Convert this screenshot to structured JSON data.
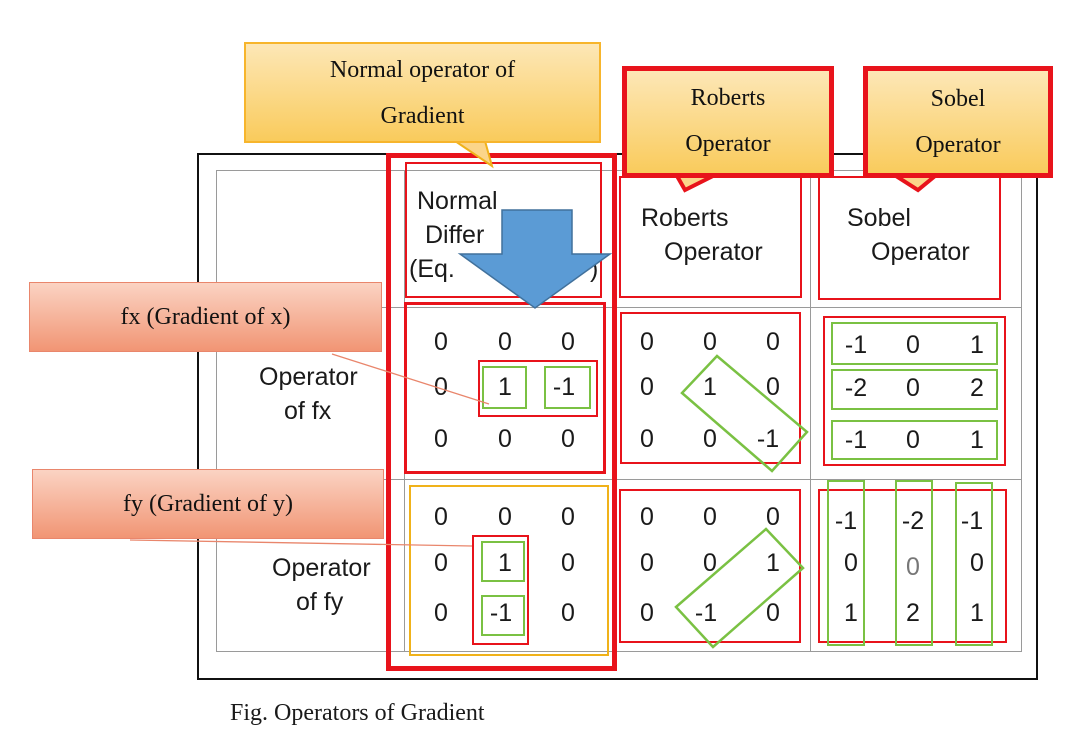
{
  "callouts": {
    "normal": [
      "Normal operator of",
      "Gradient"
    ],
    "roberts": [
      "Roberts",
      "Operator"
    ],
    "sobel": [
      "Sobel",
      "Operator"
    ]
  },
  "headers": {
    "normal": [
      "Normal",
      "Differ",
      "(Eq.",
      ")"
    ],
    "roberts": [
      "Roberts",
      "Operator"
    ],
    "sobel": [
      "Sobel",
      "Operator"
    ]
  },
  "row_labels": {
    "fx": [
      "Operator",
      "of fx"
    ],
    "fy": [
      "Operator",
      "of fy"
    ]
  },
  "side_labels": {
    "fx": "fx (Gradient of x)",
    "fy": "fy (Gradient of y)"
  },
  "matrices": {
    "normal_fx": [
      [
        "0",
        "0",
        "0"
      ],
      [
        "0",
        "1",
        "-1"
      ],
      [
        "0",
        "0",
        "0"
      ]
    ],
    "roberts_fx": [
      [
        "0",
        "0",
        "0"
      ],
      [
        "0",
        "1",
        "0"
      ],
      [
        "0",
        "0",
        "-1"
      ]
    ],
    "sobel_fx": [
      [
        "-1",
        "0",
        "1"
      ],
      [
        "-2",
        "0",
        "2"
      ],
      [
        "-1",
        "0",
        "1"
      ]
    ],
    "normal_fy": [
      [
        "0",
        "0",
        "0"
      ],
      [
        "0",
        "1",
        "0"
      ],
      [
        "0",
        "-1",
        "0"
      ]
    ],
    "roberts_fy": [
      [
        "0",
        "0",
        "0"
      ],
      [
        "0",
        "0",
        "1"
      ],
      [
        "0",
        "-1",
        "0"
      ]
    ],
    "sobel_fy": [
      [
        "-1",
        "-2",
        "-1"
      ],
      [
        "0",
        "0",
        "0"
      ],
      [
        "1",
        "2",
        "1"
      ]
    ]
  },
  "caption": "Fig. Operators of Gradient",
  "colors": {
    "red": "#e8131b",
    "green": "#7ac143",
    "orange": "#f0b21a",
    "arrow_blue": "#5b9bd5",
    "salmon": "#f19574"
  }
}
